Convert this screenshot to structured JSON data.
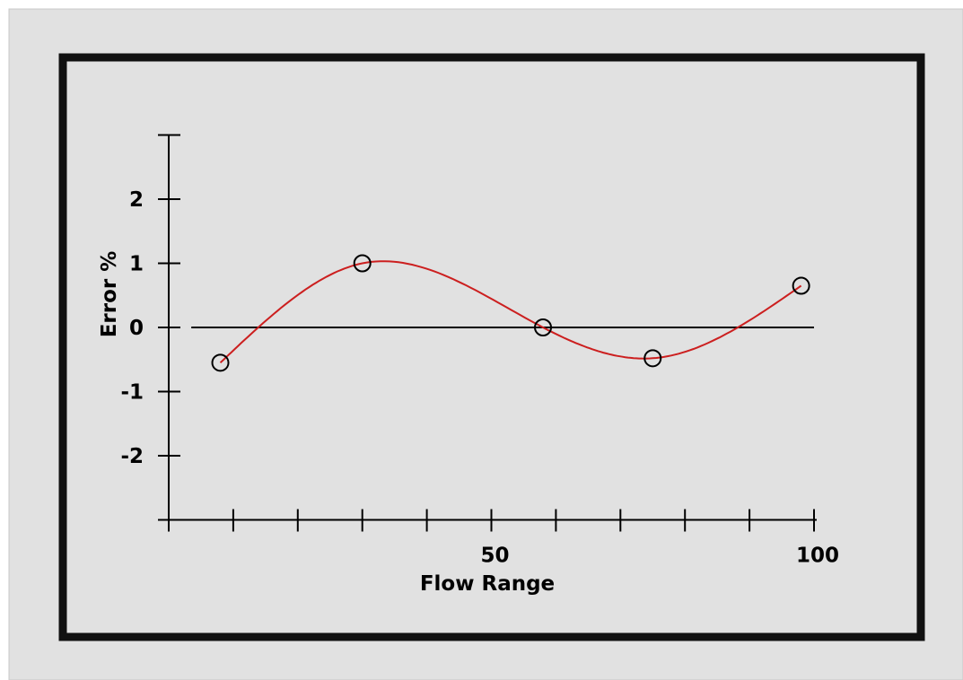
{
  "chart_data": {
    "type": "scatter",
    "xlabel": "Flow Range",
    "ylabel": "Error %",
    "xlim": [
      0,
      100
    ],
    "ylim": [
      -3,
      3
    ],
    "x_tick_values": [
      0,
      10,
      20,
      30,
      40,
      50,
      60,
      70,
      80,
      90,
      100
    ],
    "x_tick_labels": [
      {
        "value": 50,
        "label": "50"
      },
      {
        "value": 100,
        "label": "100"
      }
    ],
    "y_tick_values": [
      -3,
      -2,
      -1,
      0,
      1,
      2,
      3
    ],
    "y_tick_labels": [
      {
        "value": 2,
        "label": "2"
      },
      {
        "value": 1,
        "label": "1"
      },
      {
        "value": 0,
        "label": "0"
      },
      {
        "value": -1,
        "label": "-1"
      },
      {
        "value": -2,
        "label": "-2"
      }
    ],
    "zero_line": true,
    "grid": false,
    "points": [
      {
        "x": 8,
        "y": -0.55
      },
      {
        "x": 30,
        "y": 1.0
      },
      {
        "x": 58,
        "y": 0.0
      },
      {
        "x": 75,
        "y": -0.48
      },
      {
        "x": 98,
        "y": 0.65
      }
    ],
    "colors": {
      "background": "#e1e1e1",
      "frame": "#111111",
      "curve": "#cc1f1f",
      "axis": "#000000",
      "marker": "#000000"
    }
  }
}
